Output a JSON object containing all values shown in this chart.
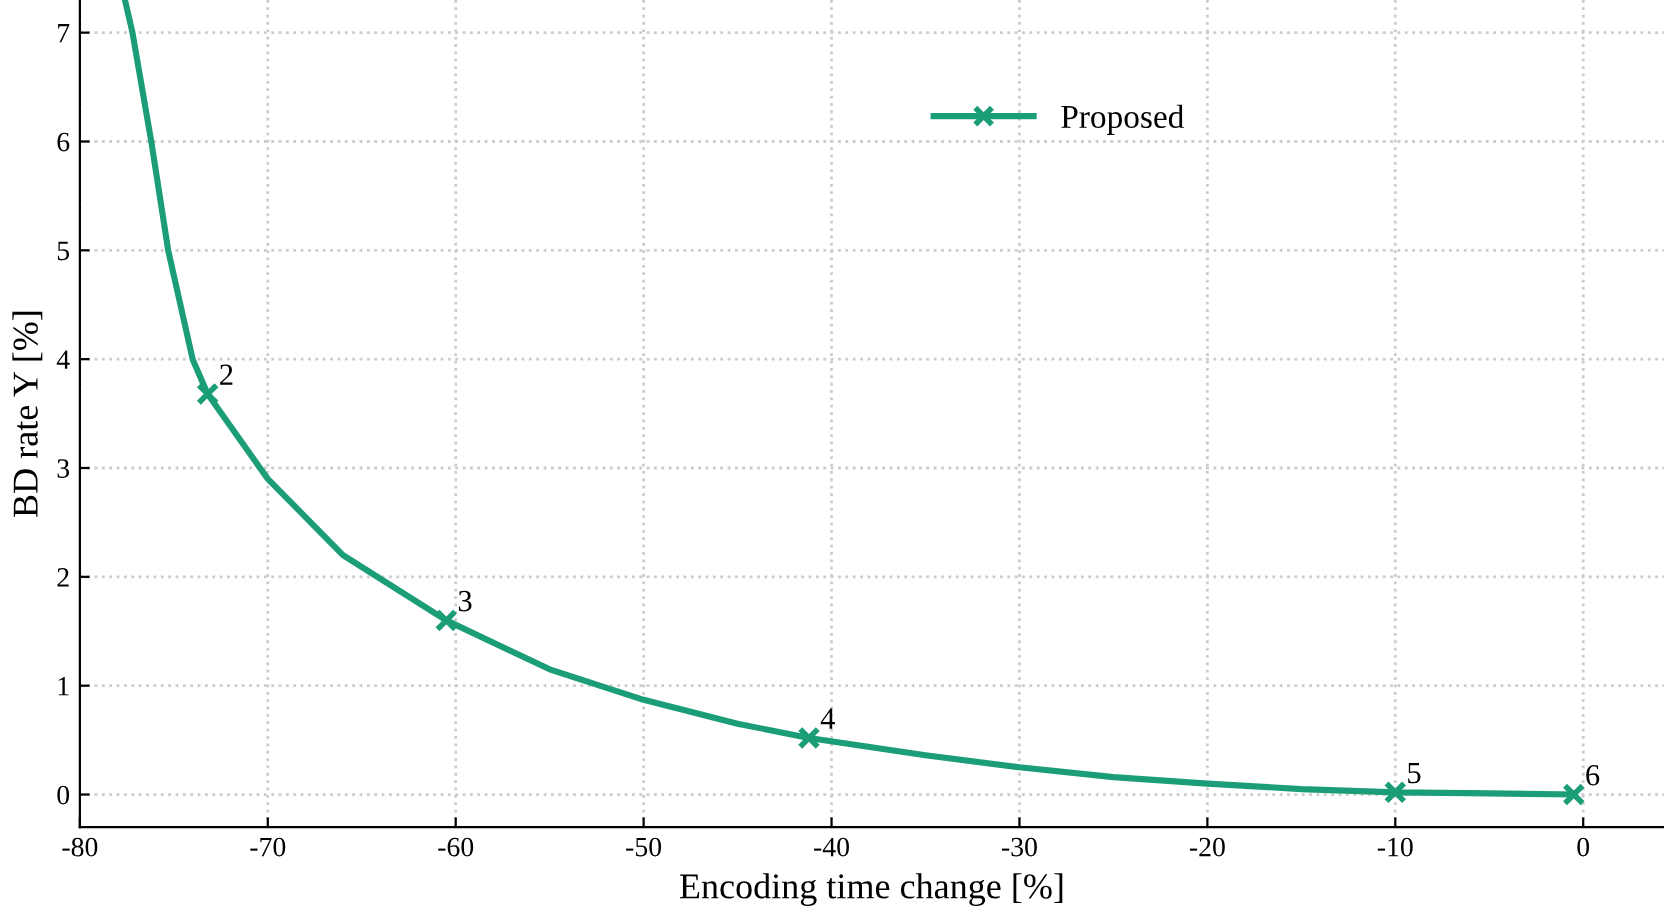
{
  "chart_data": {
    "type": "line",
    "xlabel": "Encoding time change [%]",
    "ylabel": "BD rate Y [%]",
    "xlim": [
      -80,
      4.3
    ],
    "ylim": [
      -0.3,
      7.3
    ],
    "xticks": [
      -80,
      -70,
      -60,
      -50,
      -40,
      -30,
      -20,
      -10,
      0
    ],
    "yticks": [
      0,
      1,
      2,
      3,
      4,
      5,
      6,
      7
    ],
    "grid": true,
    "legend": "top right",
    "series": [
      {
        "color": "#1b9e77",
        "marker": "none",
        "x": [
          -77.6,
          -77.2,
          -76.2,
          -75.3,
          -74.0,
          -73.2,
          -70,
          -66,
          -60.5,
          -55,
          -50,
          -45,
          -41.2,
          -35,
          -30,
          -25,
          -20,
          -15,
          -10,
          -5,
          -0.5
        ],
        "values": [
          7.3,
          7.0,
          6.0,
          5.0,
          4.0,
          3.68,
          2.9,
          2.2,
          1.6,
          1.15,
          0.87,
          0.65,
          0.52,
          0.36,
          0.25,
          0.16,
          0.1,
          0.05,
          0.02,
          0.01,
          0
        ]
      },
      {
        "type": "scatter",
        "name": "Proposed",
        "color": "#1b9e77",
        "marker": "cross",
        "x": [
          -73.2,
          -60.5,
          -41.2,
          -10,
          -0.5
        ],
        "values": [
          3.68,
          1.6,
          0.52,
          0.02,
          0
        ]
      }
    ],
    "annotations": [
      {
        "text": "2",
        "x": -73.2,
        "y": 3.68
      },
      {
        "text": "3",
        "x": -60.5,
        "y": 1.6
      },
      {
        "text": "4",
        "x": -41.2,
        "y": 0.52
      },
      {
        "text": "5",
        "x": -10,
        "y": 0.02
      },
      {
        "text": "6",
        "x": -0.5,
        "y": 0
      }
    ]
  }
}
